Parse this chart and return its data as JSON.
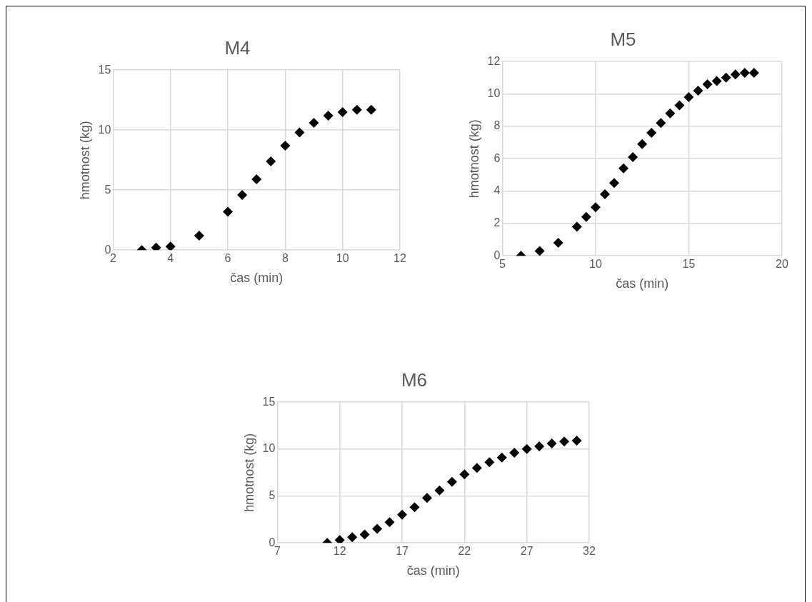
{
  "chart_data": [
    {
      "type": "scatter",
      "title": "M4",
      "xlabel": "čas (min)",
      "ylabel": "hmotnost (kg)",
      "xlim": [
        2,
        12
      ],
      "xticks": [
        2,
        4,
        6,
        8,
        10,
        12
      ],
      "ylim": [
        0,
        15
      ],
      "yticks": [
        0,
        5,
        10,
        15
      ],
      "grid": true,
      "legend": false,
      "marker": "diamond",
      "series": [
        {
          "color": "#000000",
          "x": [
            3,
            3.5,
            4,
            5,
            6,
            6.5,
            7,
            7.5,
            8,
            8.5,
            9,
            9.5,
            10,
            10.5,
            11
          ],
          "values": [
            0,
            0.2,
            0.3,
            1.2,
            3.2,
            4.6,
            5.9,
            7.4,
            8.7,
            9.8,
            10.6,
            11.2,
            11.5,
            11.7,
            11.7
          ]
        }
      ]
    },
    {
      "type": "scatter",
      "title": "M5",
      "xlabel": "čas (min)",
      "ylabel": "hmotnost (kg)",
      "xlim": [
        5,
        20
      ],
      "xticks": [
        5,
        10,
        15,
        20
      ],
      "ylim": [
        0,
        12
      ],
      "yticks": [
        0,
        2,
        4,
        6,
        8,
        10,
        12
      ],
      "grid": true,
      "legend": false,
      "marker": "diamond",
      "series": [
        {
          "color": "#000000",
          "x": [
            6,
            7,
            8,
            9,
            9.5,
            10,
            10.5,
            11,
            11.5,
            12,
            12.5,
            13,
            13.5,
            14,
            14.5,
            15,
            15.5,
            16,
            16.5,
            17,
            17.5,
            18,
            18.5
          ],
          "values": [
            0,
            0.3,
            0.8,
            1.8,
            2.4,
            3,
            3.8,
            4.5,
            5.4,
            6.1,
            6.9,
            7.6,
            8.2,
            8.8,
            9.3,
            9.8,
            10.2,
            10.6,
            10.8,
            11,
            11.2,
            11.3,
            11.3
          ]
        }
      ]
    },
    {
      "type": "scatter",
      "title": "M6",
      "xlabel": "čas (min)",
      "ylabel": "hmotnost (kg)",
      "xlim": [
        7,
        32
      ],
      "xticks": [
        7,
        12,
        17,
        22,
        27,
        32
      ],
      "ylim": [
        0,
        15
      ],
      "yticks": [
        0,
        5,
        10,
        15
      ],
      "grid": true,
      "legend": false,
      "marker": "diamond",
      "series": [
        {
          "color": "#000000",
          "x": [
            11,
            12,
            13,
            14,
            15,
            16,
            17,
            18,
            19,
            20,
            21,
            22,
            23,
            24,
            25,
            26,
            27,
            28,
            29,
            30,
            31
          ],
          "values": [
            0,
            0.3,
            0.6,
            0.9,
            1.5,
            2.2,
            3,
            3.8,
            4.8,
            5.6,
            6.5,
            7.3,
            8,
            8.6,
            9.1,
            9.6,
            10,
            10.3,
            10.6,
            10.8,
            10.9
          ]
        }
      ]
    }
  ]
}
